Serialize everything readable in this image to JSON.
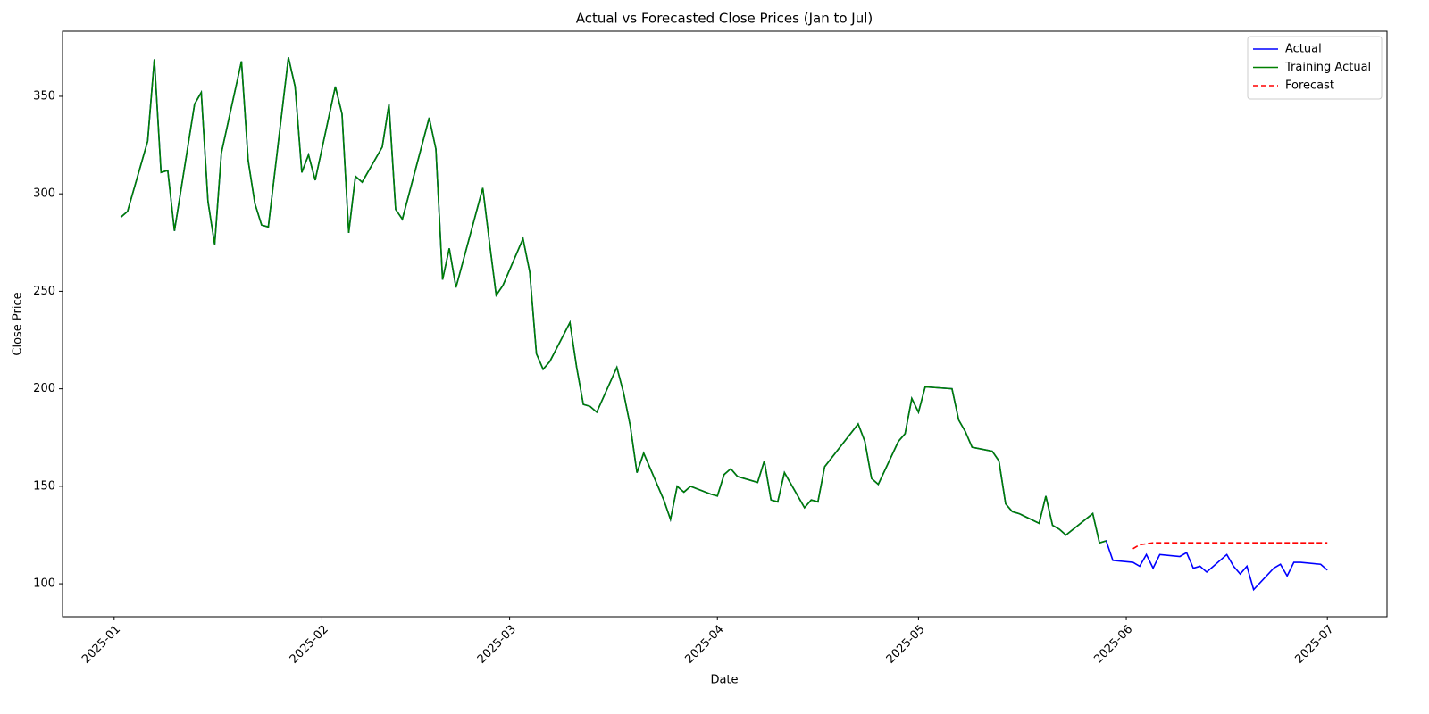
{
  "chart_data": {
    "type": "line",
    "title": "Actual vs Forecasted Close Prices (Jan to Jul)",
    "xlabel": "Date",
    "ylabel": "Close Price",
    "x": [
      2,
      3,
      6,
      7,
      8,
      9,
      10,
      13,
      14,
      15,
      16,
      17,
      20,
      21,
      22,
      23,
      24,
      27,
      28,
      29,
      30,
      31,
      34,
      35,
      36,
      37,
      38,
      41,
      42,
      43,
      44,
      48,
      49,
      50,
      51,
      52,
      56,
      57,
      58,
      59,
      62,
      63,
      64,
      65,
      66,
      69,
      70,
      71,
      72,
      73,
      76,
      77,
      78,
      79,
      80,
      83,
      84,
      85,
      86,
      87,
      90,
      91,
      92,
      93,
      94,
      97,
      98,
      99,
      100,
      101,
      104,
      105,
      106,
      107,
      112,
      113,
      114,
      115,
      118,
      119,
      120,
      121,
      122,
      126,
      127,
      128,
      129,
      132,
      133,
      134,
      135,
      136,
      139,
      140,
      141,
      142,
      143,
      147,
      148,
      149,
      150,
      153,
      154,
      155,
      156,
      157,
      160,
      161,
      162,
      163,
      164,
      167,
      168,
      169,
      170,
      171,
      174,
      175,
      176,
      177,
      178,
      181,
      182
    ],
    "series": [
      {
        "name": "Actual",
        "color": "#0000ff",
        "linestyle": "solid",
        "values": [
          288,
          291,
          327,
          369,
          311,
          312,
          281,
          346,
          352,
          296,
          274,
          321,
          368,
          317,
          295,
          284,
          283,
          370,
          355,
          311,
          320,
          307,
          355,
          341,
          280,
          309,
          306,
          324,
          346,
          292,
          287,
          339,
          323,
          256,
          272,
          252,
          303,
          275,
          248,
          253,
          277,
          260,
          218,
          210,
          214,
          234,
          211,
          192,
          191,
          188,
          211,
          198,
          181,
          157,
          167,
          143,
          133,
          150,
          147,
          150,
          146,
          145,
          156,
          159,
          155,
          152,
          163,
          143,
          142,
          157,
          139,
          143,
          142,
          160,
          182,
          173,
          154,
          151,
          173,
          177,
          195,
          188,
          201,
          200,
          184,
          178,
          170,
          168,
          163,
          141,
          137,
          136,
          131,
          145,
          130,
          128,
          125,
          136,
          121,
          122,
          112,
          111,
          109,
          115,
          108,
          115,
          114,
          116,
          108,
          109,
          106,
          115,
          109,
          105,
          109,
          97,
          108,
          110,
          104,
          111,
          111,
          110,
          107
        ]
      },
      {
        "name": "Training Actual",
        "color": "#008000",
        "linestyle": "solid",
        "values": [
          288,
          291,
          327,
          369,
          311,
          312,
          281,
          346,
          352,
          296,
          274,
          321,
          368,
          317,
          295,
          284,
          283,
          370,
          355,
          311,
          320,
          307,
          355,
          341,
          280,
          309,
          306,
          324,
          346,
          292,
          287,
          339,
          323,
          256,
          272,
          252,
          303,
          275,
          248,
          253,
          277,
          260,
          218,
          210,
          214,
          234,
          211,
          192,
          191,
          188,
          211,
          198,
          181,
          157,
          167,
          143,
          133,
          150,
          147,
          150,
          146,
          145,
          156,
          159,
          155,
          152,
          163,
          143,
          142,
          157,
          139,
          143,
          142,
          160,
          182,
          173,
          154,
          151,
          173,
          177,
          195,
          188,
          201,
          200,
          184,
          178,
          170,
          168,
          163,
          141,
          137,
          136,
          131,
          145,
          130,
          128,
          125,
          136,
          121,
          122,
          null,
          null,
          null,
          null,
          null,
          null,
          null,
          null,
          null,
          null,
          null,
          null,
          null,
          null,
          null,
          null,
          null,
          null,
          null,
          null,
          null,
          null,
          null
        ]
      },
      {
        "name": "Forecast",
        "color": "#ff0000",
        "linestyle": "dashed",
        "values": [
          null,
          null,
          null,
          null,
          null,
          null,
          null,
          null,
          null,
          null,
          null,
          null,
          null,
          null,
          null,
          null,
          null,
          null,
          null,
          null,
          null,
          null,
          null,
          null,
          null,
          null,
          null,
          null,
          null,
          null,
          null,
          null,
          null,
          null,
          null,
          null,
          null,
          null,
          null,
          null,
          null,
          null,
          null,
          null,
          null,
          null,
          null,
          null,
          null,
          null,
          null,
          null,
          null,
          null,
          null,
          null,
          null,
          null,
          null,
          null,
          null,
          null,
          null,
          null,
          null,
          null,
          null,
          null,
          null,
          null,
          null,
          null,
          null,
          null,
          null,
          null,
          null,
          null,
          null,
          null,
          null,
          null,
          null,
          null,
          null,
          null,
          null,
          null,
          null,
          null,
          null,
          null,
          null,
          null,
          null,
          null,
          null,
          null,
          null,
          null,
          null,
          118,
          120,
          120.5,
          121,
          121,
          121,
          121,
          121,
          121,
          121,
          121,
          121,
          121,
          121,
          121,
          121,
          121,
          121,
          121,
          121,
          121,
          121
        ]
      }
    ],
    "xlim": [
      -6.7,
      190.9
    ],
    "xticks": [
      {
        "value": 1,
        "label": "2025-01"
      },
      {
        "value": 32,
        "label": "2025-02"
      },
      {
        "value": 60,
        "label": "2025-03"
      },
      {
        "value": 91,
        "label": "2025-04"
      },
      {
        "value": 121,
        "label": "2025-05"
      },
      {
        "value": 152,
        "label": "2025-06"
      },
      {
        "value": 182,
        "label": "2025-07"
      }
    ],
    "ylim": [
      83.1,
      383.4
    ],
    "yticks": [
      100,
      150,
      200,
      250,
      300,
      350
    ],
    "grid": false,
    "legend": "upper right"
  }
}
